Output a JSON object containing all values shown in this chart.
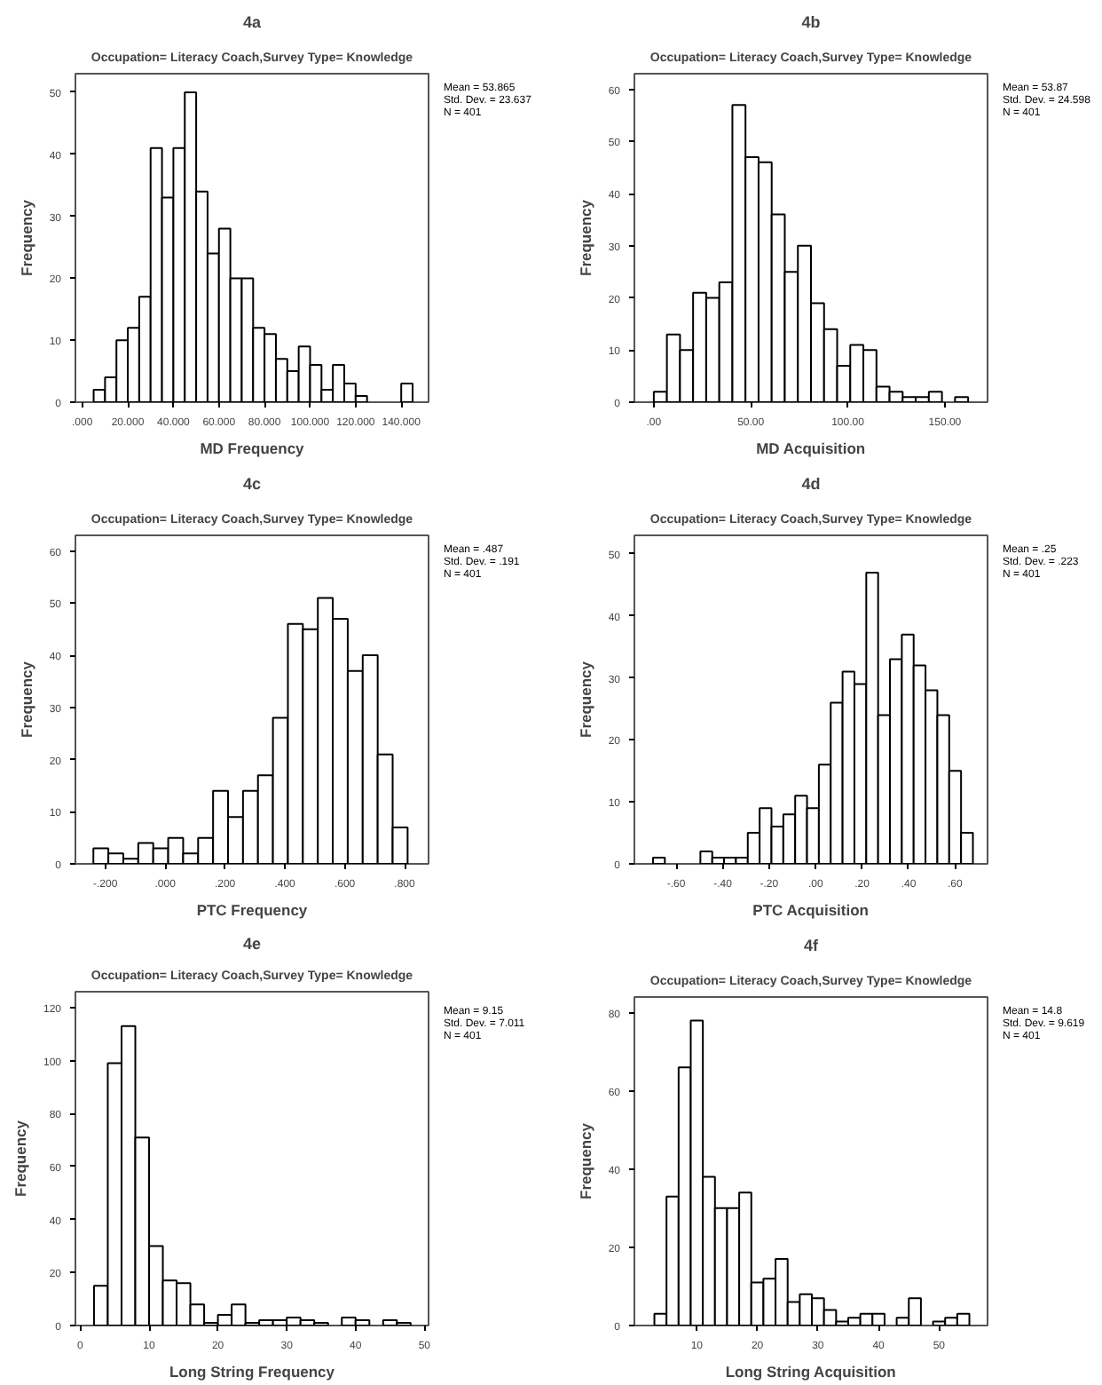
{
  "chart_data": [
    {
      "type": "histogram",
      "title": "4a",
      "subtitle": "Occupation= Literacy Coach,Survey Type= Knowledge",
      "xlabel": "MD Frequency",
      "ylabel": "Frequency",
      "color": "#ffffff",
      "grid": false,
      "bins": [
        5,
        10,
        15,
        20,
        25,
        30,
        35,
        40,
        45,
        50,
        55,
        60,
        65,
        70,
        75,
        80,
        85,
        90,
        95,
        100,
        105,
        110,
        115,
        120,
        125,
        130,
        135,
        140,
        145
      ],
      "values": [
        2,
        4,
        10,
        12,
        17,
        41,
        33,
        41,
        50,
        34,
        24,
        28,
        20,
        20,
        12,
        11,
        7,
        5,
        9,
        6,
        2,
        6,
        3,
        1,
        0,
        0,
        0,
        3
      ],
      "xlim": [
        -3,
        152
      ],
      "ylim": [
        0,
        53
      ],
      "xticks": [
        {
          "value": 0,
          "label": ".000"
        },
        {
          "value": 20,
          "label": "20.000"
        },
        {
          "value": 40,
          "label": "40.000"
        },
        {
          "value": 60,
          "label": "60.000"
        },
        {
          "value": 80,
          "label": "80.000"
        },
        {
          "value": 100,
          "label": "100.000"
        },
        {
          "value": 120,
          "label": "120.000"
        },
        {
          "value": 140,
          "label": "140.000"
        }
      ],
      "yticks": [
        0,
        10,
        20,
        30,
        40,
        50
      ],
      "annotations": [
        "Mean = 53.865",
        "Std. Dev. = 23.637",
        "N = 401"
      ]
    },
    {
      "type": "histogram",
      "title": "4b",
      "subtitle": "Occupation= Literacy Coach,Survey Type= Knowledge",
      "xlabel": "MD Acquisition",
      "ylabel": "Frequency",
      "color": "#ffffff",
      "grid": false,
      "bins": [
        0,
        6.75,
        13.5,
        20.25,
        27,
        33.75,
        40.5,
        47.25,
        54,
        60.75,
        67.5,
        74.25,
        81,
        87.75,
        94.5,
        101.25,
        108,
        114.75,
        121.5,
        128.25,
        135,
        141.75,
        148.5,
        155.25,
        162
      ],
      "values": [
        2,
        13,
        10,
        21,
        20,
        23,
        57,
        47,
        46,
        36,
        25,
        30,
        19,
        14,
        7,
        11,
        10,
        3,
        2,
        1,
        1,
        2,
        0,
        1
      ],
      "xlim": [
        -10,
        172
      ],
      "ylim": [
        0,
        63
      ],
      "xticks": [
        {
          "value": 0,
          "label": ".00"
        },
        {
          "value": 50,
          "label": "50.00"
        },
        {
          "value": 100,
          "label": "100.00"
        },
        {
          "value": 150,
          "label": "150.00"
        }
      ],
      "yticks": [
        0,
        10,
        20,
        30,
        40,
        50,
        60
      ],
      "annotations": [
        "Mean = 53.87",
        "Std. Dev. = 24.598",
        "N = 401"
      ]
    },
    {
      "type": "histogram",
      "title": "4c",
      "subtitle": "Occupation= Literacy Coach,Survey Type= Knowledge",
      "xlabel": "PTC Frequency",
      "ylabel": "Frequency",
      "color": "#ffffff",
      "grid": false,
      "bins": [
        -0.24,
        -0.19,
        -0.14,
        -0.09,
        -0.04,
        0.01,
        0.06,
        0.11,
        0.16,
        0.21,
        0.26,
        0.31,
        0.36,
        0.41,
        0.46,
        0.51,
        0.56,
        0.61,
        0.66,
        0.71,
        0.76,
        0.81
      ],
      "values": [
        3,
        2,
        1,
        4,
        3,
        5,
        2,
        5,
        14,
        9,
        14,
        17,
        28,
        46,
        45,
        51,
        47,
        37,
        40,
        21,
        7
      ],
      "xlim": [
        -0.3,
        0.88
      ],
      "ylim": [
        0,
        63
      ],
      "xticks": [
        {
          "value": -0.2,
          "label": "-.200"
        },
        {
          "value": 0,
          "label": ".000"
        },
        {
          "value": 0.2,
          "label": ".200"
        },
        {
          "value": 0.4,
          "label": ".400"
        },
        {
          "value": 0.6,
          "label": ".600"
        },
        {
          "value": 0.8,
          "label": ".800"
        }
      ],
      "yticks": [
        0,
        10,
        20,
        30,
        40,
        50,
        60
      ],
      "annotations": [
        "Mean = .487",
        "Std. Dev. = .191",
        "N = 401"
      ]
    },
    {
      "type": "histogram",
      "title": "4d",
      "subtitle": "Occupation= Literacy Coach,Survey Type= Knowledge",
      "xlabel": "PTC Acquisition",
      "ylabel": "Frequency",
      "color": "#ffffff",
      "grid": false,
      "bins": [
        -0.7,
        -0.649,
        -0.598,
        -0.547,
        -0.496,
        -0.445,
        -0.394,
        -0.343,
        -0.292,
        -0.241,
        -0.19,
        -0.139,
        -0.088,
        -0.037,
        0.014,
        0.065,
        0.116,
        0.167,
        0.218,
        0.269,
        0.32,
        0.371,
        0.422,
        0.473,
        0.524,
        0.575,
        0.626,
        0.677
      ],
      "values": [
        1,
        0,
        0,
        0,
        2,
        1,
        1,
        1,
        5,
        9,
        6,
        8,
        11,
        9,
        16,
        26,
        31,
        29,
        47,
        24,
        33,
        37,
        32,
        28,
        24,
        15,
        5
      ],
      "xlim": [
        -0.78,
        0.74
      ],
      "ylim": [
        0,
        53
      ],
      "xticks": [
        {
          "value": -0.6,
          "label": "-.60"
        },
        {
          "value": -0.4,
          "label": "-.40"
        },
        {
          "value": -0.2,
          "label": "-.20"
        },
        {
          "value": 0,
          "label": ".00"
        },
        {
          "value": 0.2,
          "label": ".20"
        },
        {
          "value": 0.4,
          "label": ".40"
        },
        {
          "value": 0.6,
          "label": ".60"
        }
      ],
      "yticks": [
        0,
        10,
        20,
        30,
        40,
        50
      ],
      "annotations": [
        "Mean = .25",
        "Std. Dev. = .223",
        "N = 401"
      ]
    },
    {
      "type": "histogram",
      "title": "4e",
      "subtitle": "Occupation= Literacy Coach,Survey Type= Knowledge",
      "xlabel": "Long String Frequency",
      "ylabel": "Frequency",
      "color": "#ffffff",
      "grid": false,
      "bins": [
        2,
        4,
        6,
        8,
        10,
        12,
        14,
        16,
        18,
        20,
        22,
        24,
        26,
        28,
        30,
        32,
        34,
        36,
        38,
        40,
        42,
        44,
        46,
        48
      ],
      "values": [
        15,
        99,
        113,
        71,
        30,
        17,
        16,
        8,
        1,
        4,
        8,
        1,
        2,
        2,
        3,
        2,
        1,
        0,
        3,
        2,
        0,
        2,
        1
      ],
      "xlim": [
        -0.7,
        50.6
      ],
      "ylim": [
        0,
        126
      ],
      "xticks": [
        0,
        10,
        20,
        30,
        40,
        50
      ],
      "yticks": [
        0,
        20,
        40,
        60,
        80,
        100,
        120
      ],
      "annotations": [
        "Mean = 9.15",
        "Std. Dev. = 7.011",
        "N = 401"
      ]
    },
    {
      "type": "histogram",
      "title": "4f",
      "subtitle": "Occupation= Literacy Coach,Survey Type= Knowledge",
      "xlabel": "Long String Acquisition",
      "ylabel": "Frequency",
      "color": "#ffffff",
      "grid": false,
      "bins": [
        3,
        5,
        7,
        9,
        11,
        13,
        15,
        17,
        19,
        21,
        23,
        25,
        27,
        29,
        31,
        33,
        35,
        37,
        39,
        41,
        43,
        45,
        47,
        49,
        51,
        53,
        55
      ],
      "values": [
        3,
        33,
        66,
        78,
        38,
        30,
        30,
        34,
        11,
        12,
        17,
        6,
        8,
        7,
        4,
        1,
        2,
        3,
        3,
        0,
        2,
        7,
        0,
        1,
        2,
        3
      ],
      "xlim": [
        -0.3,
        58
      ],
      "ylim": [
        0,
        84
      ],
      "xticks": [
        10,
        20,
        30,
        40,
        50
      ],
      "yticks": [
        0,
        20,
        40,
        60,
        80
      ],
      "annotations": [
        "Mean = 14.8",
        "Std. Dev. = 9.619",
        "N = 401"
      ]
    }
  ]
}
